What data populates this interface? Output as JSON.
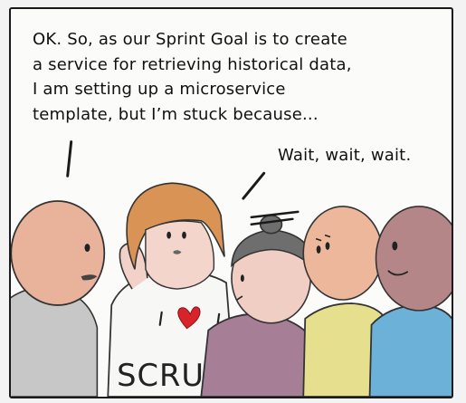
{
  "comic": {
    "speech_left": [
      "OK. So, as our Sprint Goal is to create",
      "a service for retrieving historical data,",
      "I am setting up a microservice",
      "template, but I’m stuck because..."
    ],
    "speech_right": "Wait, wait, wait.",
    "shirt_text": "SCRU"
  },
  "colors": {
    "panel_border": "#1a1a1a",
    "skin_left": "#e8b39a",
    "hair_orange": "#d99455",
    "hair_grey": "#6e6e6e",
    "shirt_yellow": "#e6e08e",
    "shirt_blue": "#6cb2d8",
    "shirt_purple": "#a67e95",
    "heart_red": "#d8232a"
  }
}
